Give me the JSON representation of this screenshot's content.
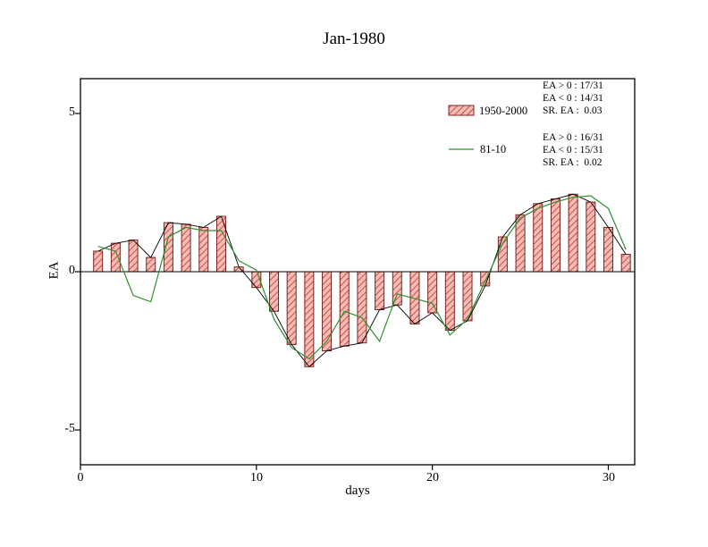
{
  "chart_data": {
    "type": "bar",
    "title": "Jan-1980",
    "xlabel": "days",
    "ylabel": "EA",
    "xlim": [
      0,
      31.5
    ],
    "ylim": [
      -6.1,
      6.1
    ],
    "xticks": [
      0,
      10,
      20,
      30
    ],
    "yticks": [
      5,
      0,
      -5
    ],
    "xtick_labels": [
      "0",
      "10",
      "20",
      "30"
    ],
    "ytick_labels": [
      "5",
      "0",
      "-5"
    ],
    "grid": false,
    "x": [
      1,
      2,
      3,
      4,
      5,
      6,
      7,
      8,
      9,
      10,
      11,
      12,
      13,
      14,
      15,
      16,
      17,
      18,
      19,
      20,
      21,
      22,
      23,
      24,
      25,
      26,
      27,
      28,
      29,
      30,
      31
    ],
    "series": [
      {
        "name": "1950-2000",
        "type": "bar",
        "fill": "#f5bcb6",
        "hatch_color": "#c4423a",
        "edge_color": "#7c241f",
        "top_line_color": "#000000",
        "values": [
          0.65,
          0.9,
          1.0,
          0.45,
          1.55,
          1.5,
          1.4,
          1.75,
          0.15,
          -0.5,
          -1.25,
          -2.3,
          -3.0,
          -2.5,
          -2.35,
          -2.25,
          -1.2,
          -1.05,
          -1.65,
          -1.3,
          -1.85,
          -1.55,
          -0.45,
          1.1,
          1.8,
          2.15,
          2.3,
          2.45,
          2.2,
          1.4,
          0.55
        ]
      },
      {
        "name": "81-10",
        "type": "line",
        "color": "#2f8f2f",
        "values": [
          0.8,
          0.65,
          -0.75,
          -0.95,
          1.1,
          1.4,
          1.3,
          1.3,
          0.35,
          0.05,
          -1.5,
          -2.4,
          -2.75,
          -2.2,
          -1.25,
          -1.45,
          -2.2,
          -0.7,
          -0.85,
          -1.0,
          -2.0,
          -1.5,
          -0.3,
          0.9,
          1.7,
          2.0,
          2.2,
          2.35,
          2.4,
          2.0,
          0.7
        ]
      }
    ],
    "legend": {
      "position": "top-right-inside",
      "entries": [
        {
          "label": "1950-2000",
          "stats": [
            "EA > 0 : 17/31",
            "EA < 0 : 14/31",
            "SR. EA :  0.03"
          ]
        },
        {
          "label": "81-10",
          "stats": [
            "EA > 0 : 16/31",
            "EA < 0 : 15/31",
            "SR. EA :  0.02"
          ]
        }
      ]
    }
  }
}
